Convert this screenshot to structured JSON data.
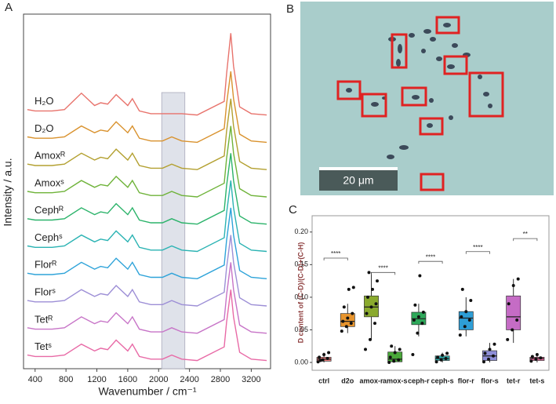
{
  "chart_data": [
    {
      "type": "spectra",
      "panel": "A",
      "ylabel": "Intensity / a.u.",
      "xlabel": "Wavenumber / cm⁻¹",
      "xlim": [
        250,
        3450
      ],
      "ylim": [
        0,
        13
      ],
      "xticks": [
        400,
        800,
        1200,
        1600,
        2000,
        2400,
        2800,
        3200
      ],
      "shaded_range": [
        2040,
        2340
      ],
      "x": [
        300,
        400,
        620,
        780,
        1000,
        1170,
        1250,
        1340,
        1450,
        1600,
        1660,
        1750,
        1900,
        2050,
        2170,
        2300,
        2500,
        2850,
        2880,
        2935,
        2970,
        3050,
        3200,
        3400
      ],
      "series": [
        {
          "name": "H₂O",
          "color": "#e8736c",
          "values": [
            9.5,
            9.45,
            9.45,
            9.5,
            10.1,
            9.65,
            9.75,
            9.7,
            10.05,
            9.65,
            9.9,
            9.45,
            9.35,
            9.35,
            9.35,
            9.35,
            9.3,
            9.8,
            10.8,
            12.3,
            11.1,
            9.6,
            9.35,
            9.3
          ]
        },
        {
          "name": "D₂O",
          "color": "#d9922e",
          "values": [
            8.5,
            8.45,
            8.45,
            8.5,
            8.9,
            8.65,
            8.75,
            8.7,
            9.05,
            8.65,
            8.9,
            8.45,
            8.35,
            8.35,
            8.5,
            8.35,
            8.3,
            8.8,
            9.7,
            10.9,
            9.9,
            8.6,
            8.35,
            8.3
          ]
        },
        {
          "name": "Amoxᴿ",
          "color": "#b3a030",
          "values": [
            7.5,
            7.45,
            7.45,
            7.5,
            7.9,
            7.65,
            7.75,
            7.7,
            8.05,
            7.65,
            7.9,
            7.45,
            7.35,
            7.35,
            7.5,
            7.35,
            7.3,
            7.8,
            8.7,
            9.9,
            8.9,
            7.6,
            7.35,
            7.3
          ]
        },
        {
          "name": "Amoxˢ",
          "color": "#6fb33a",
          "values": [
            6.5,
            6.45,
            6.45,
            6.5,
            6.9,
            6.65,
            6.75,
            6.7,
            7.05,
            6.65,
            6.9,
            6.45,
            6.35,
            6.35,
            6.5,
            6.35,
            6.3,
            6.8,
            7.7,
            8.9,
            7.9,
            6.6,
            6.35,
            6.3
          ]
        },
        {
          "name": "Cephᴿ",
          "color": "#2bb36a",
          "values": [
            5.5,
            5.45,
            5.45,
            5.5,
            5.9,
            5.65,
            5.75,
            5.7,
            6.05,
            5.65,
            5.9,
            5.45,
            5.35,
            5.35,
            5.5,
            5.35,
            5.3,
            5.8,
            6.7,
            7.9,
            6.9,
            5.6,
            5.35,
            5.3
          ]
        },
        {
          "name": "Cephˢ",
          "color": "#2bb3b3",
          "values": [
            4.5,
            4.45,
            4.45,
            4.5,
            4.9,
            4.65,
            4.75,
            4.7,
            5.05,
            4.65,
            4.9,
            4.45,
            4.35,
            4.35,
            4.5,
            4.35,
            4.3,
            4.8,
            5.7,
            6.9,
            5.9,
            4.6,
            4.35,
            4.3
          ]
        },
        {
          "name": "Florᴿ",
          "color": "#2ea3d9",
          "values": [
            3.5,
            3.45,
            3.45,
            3.5,
            3.9,
            3.65,
            3.75,
            3.7,
            4.05,
            3.65,
            3.9,
            3.45,
            3.35,
            3.35,
            3.5,
            3.35,
            3.3,
            3.8,
            4.7,
            5.9,
            4.9,
            3.6,
            3.35,
            3.3
          ]
        },
        {
          "name": "Florˢ",
          "color": "#9d8fd6",
          "values": [
            2.5,
            2.45,
            2.45,
            2.5,
            2.9,
            2.65,
            2.75,
            2.7,
            3.05,
            2.65,
            2.9,
            2.45,
            2.35,
            2.35,
            2.5,
            2.35,
            2.3,
            2.8,
            3.7,
            4.9,
            3.9,
            2.6,
            2.35,
            2.3
          ]
        },
        {
          "name": "Tetᴿ",
          "color": "#c774c7",
          "values": [
            1.5,
            1.45,
            1.45,
            1.5,
            1.9,
            1.65,
            1.75,
            1.7,
            2.05,
            1.65,
            1.9,
            1.45,
            1.35,
            1.35,
            1.5,
            1.35,
            1.3,
            1.8,
            2.7,
            3.9,
            2.9,
            1.6,
            1.35,
            1.3
          ]
        },
        {
          "name": "Tetˢ",
          "color": "#e86aa6",
          "values": [
            0.5,
            0.45,
            0.45,
            0.5,
            0.9,
            0.65,
            0.75,
            0.7,
            1.05,
            0.65,
            0.9,
            0.45,
            0.35,
            0.35,
            0.5,
            0.35,
            0.3,
            0.8,
            1.7,
            2.9,
            1.9,
            0.6,
            0.35,
            0.3
          ]
        }
      ]
    },
    {
      "type": "box",
      "panel": "C",
      "ylabel": "D content of (C-D)/(C-D)+(C-H)",
      "ylim": [
        -0.012,
        0.225
      ],
      "yticks": [
        {
          "value": 0,
          "label": "0.00"
        },
        {
          "value": 0.05,
          "label": "0.05"
        },
        {
          "value": 0.1,
          "label": "0.10"
        },
        {
          "value": 0.15,
          "label": "0.15"
        },
        {
          "value": 0.2,
          "label": "0.20"
        }
      ],
      "categories": [
        "ctrl",
        "d2o",
        "amox-r",
        "amox-s",
        "ceph-r",
        "ceph-s",
        "flor-r",
        "flor-s",
        "tet-r",
        "tet-s"
      ],
      "boxes": [
        {
          "color": "#f08080",
          "min": 0,
          "q1": 0.002,
          "median": 0.005,
          "q3": 0.008,
          "max": 0.015,
          "points": [
            0.001,
            0.004,
            0.006,
            0.008,
            0.012,
            0.015,
            0.003
          ]
        },
        {
          "color": "#e8952e",
          "min": 0.045,
          "q1": 0.055,
          "median": 0.063,
          "q3": 0.075,
          "max": 0.09,
          "points": [
            0.048,
            0.055,
            0.06,
            0.063,
            0.068,
            0.075,
            0.085,
            0.112,
            0.115
          ]
        },
        {
          "color": "#8aaa2e",
          "min": 0.035,
          "q1": 0.07,
          "median": 0.085,
          "q3": 0.102,
          "max": 0.138,
          "points": [
            0.02,
            0.035,
            0.06,
            0.075,
            0.085,
            0.09,
            0.1,
            0.112,
            0.125,
            0.138
          ]
        },
        {
          "color": "#4aa83a",
          "min": 0,
          "q1": 0.001,
          "median": 0.005,
          "q3": 0.016,
          "max": 0.025,
          "points": [
            0,
            0.002,
            0.004,
            0.008,
            0.015,
            0.02,
            0.025
          ]
        },
        {
          "color": "#2ea85a",
          "min": 0.04,
          "q1": 0.058,
          "median": 0.067,
          "q3": 0.077,
          "max": 0.09,
          "points": [
            0.012,
            0.045,
            0.06,
            0.065,
            0.07,
            0.077,
            0.088,
            0.133
          ]
        },
        {
          "color": "#2eaaa8",
          "min": 0,
          "q1": 0.003,
          "median": 0.006,
          "q3": 0.01,
          "max": 0.015,
          "points": [
            0.001,
            0.004,
            0.006,
            0.008,
            0.011,
            0.014
          ]
        },
        {
          "color": "#2e9ed6",
          "min": 0.04,
          "q1": 0.05,
          "median": 0.068,
          "q3": 0.078,
          "max": 0.1,
          "points": [
            0.042,
            0.055,
            0.065,
            0.07,
            0.078,
            0.095,
            0.112
          ]
        },
        {
          "color": "#8e8ed8",
          "min": 0,
          "q1": 0.003,
          "median": 0.01,
          "q3": 0.018,
          "max": 0.03,
          "points": [
            0.001,
            0.005,
            0.01,
            0.014,
            0.02,
            0.028
          ]
        },
        {
          "color": "#c56cc5",
          "min": 0.03,
          "q1": 0.05,
          "median": 0.07,
          "q3": 0.102,
          "max": 0.128,
          "points": [
            0.035,
            0.05,
            0.065,
            0.09,
            0.118,
            0.128
          ]
        },
        {
          "color": "#e86a9e",
          "min": 0,
          "q1": 0.003,
          "median": 0.006,
          "q3": 0.008,
          "max": 0.013,
          "points": [
            0.002,
            0.005,
            0.007,
            0.009,
            0.012
          ]
        }
      ],
      "annotations": [
        {
          "from": "ctrl",
          "to": "d2o",
          "label": "****",
          "y": 0.16
        },
        {
          "from": "amox-r",
          "to": "amox-s",
          "label": "****",
          "y": 0.138
        },
        {
          "from": "ceph-r",
          "to": "ceph-s",
          "label": "****",
          "y": 0.155
        },
        {
          "from": "flor-r",
          "to": "flor-s",
          "label": "****",
          "y": 0.17
        },
        {
          "from": "tet-r",
          "to": "tet-s",
          "label": "**",
          "y": 0.19
        }
      ]
    }
  ],
  "image": {
    "panel": "B",
    "scale_bar": "20 μm"
  }
}
